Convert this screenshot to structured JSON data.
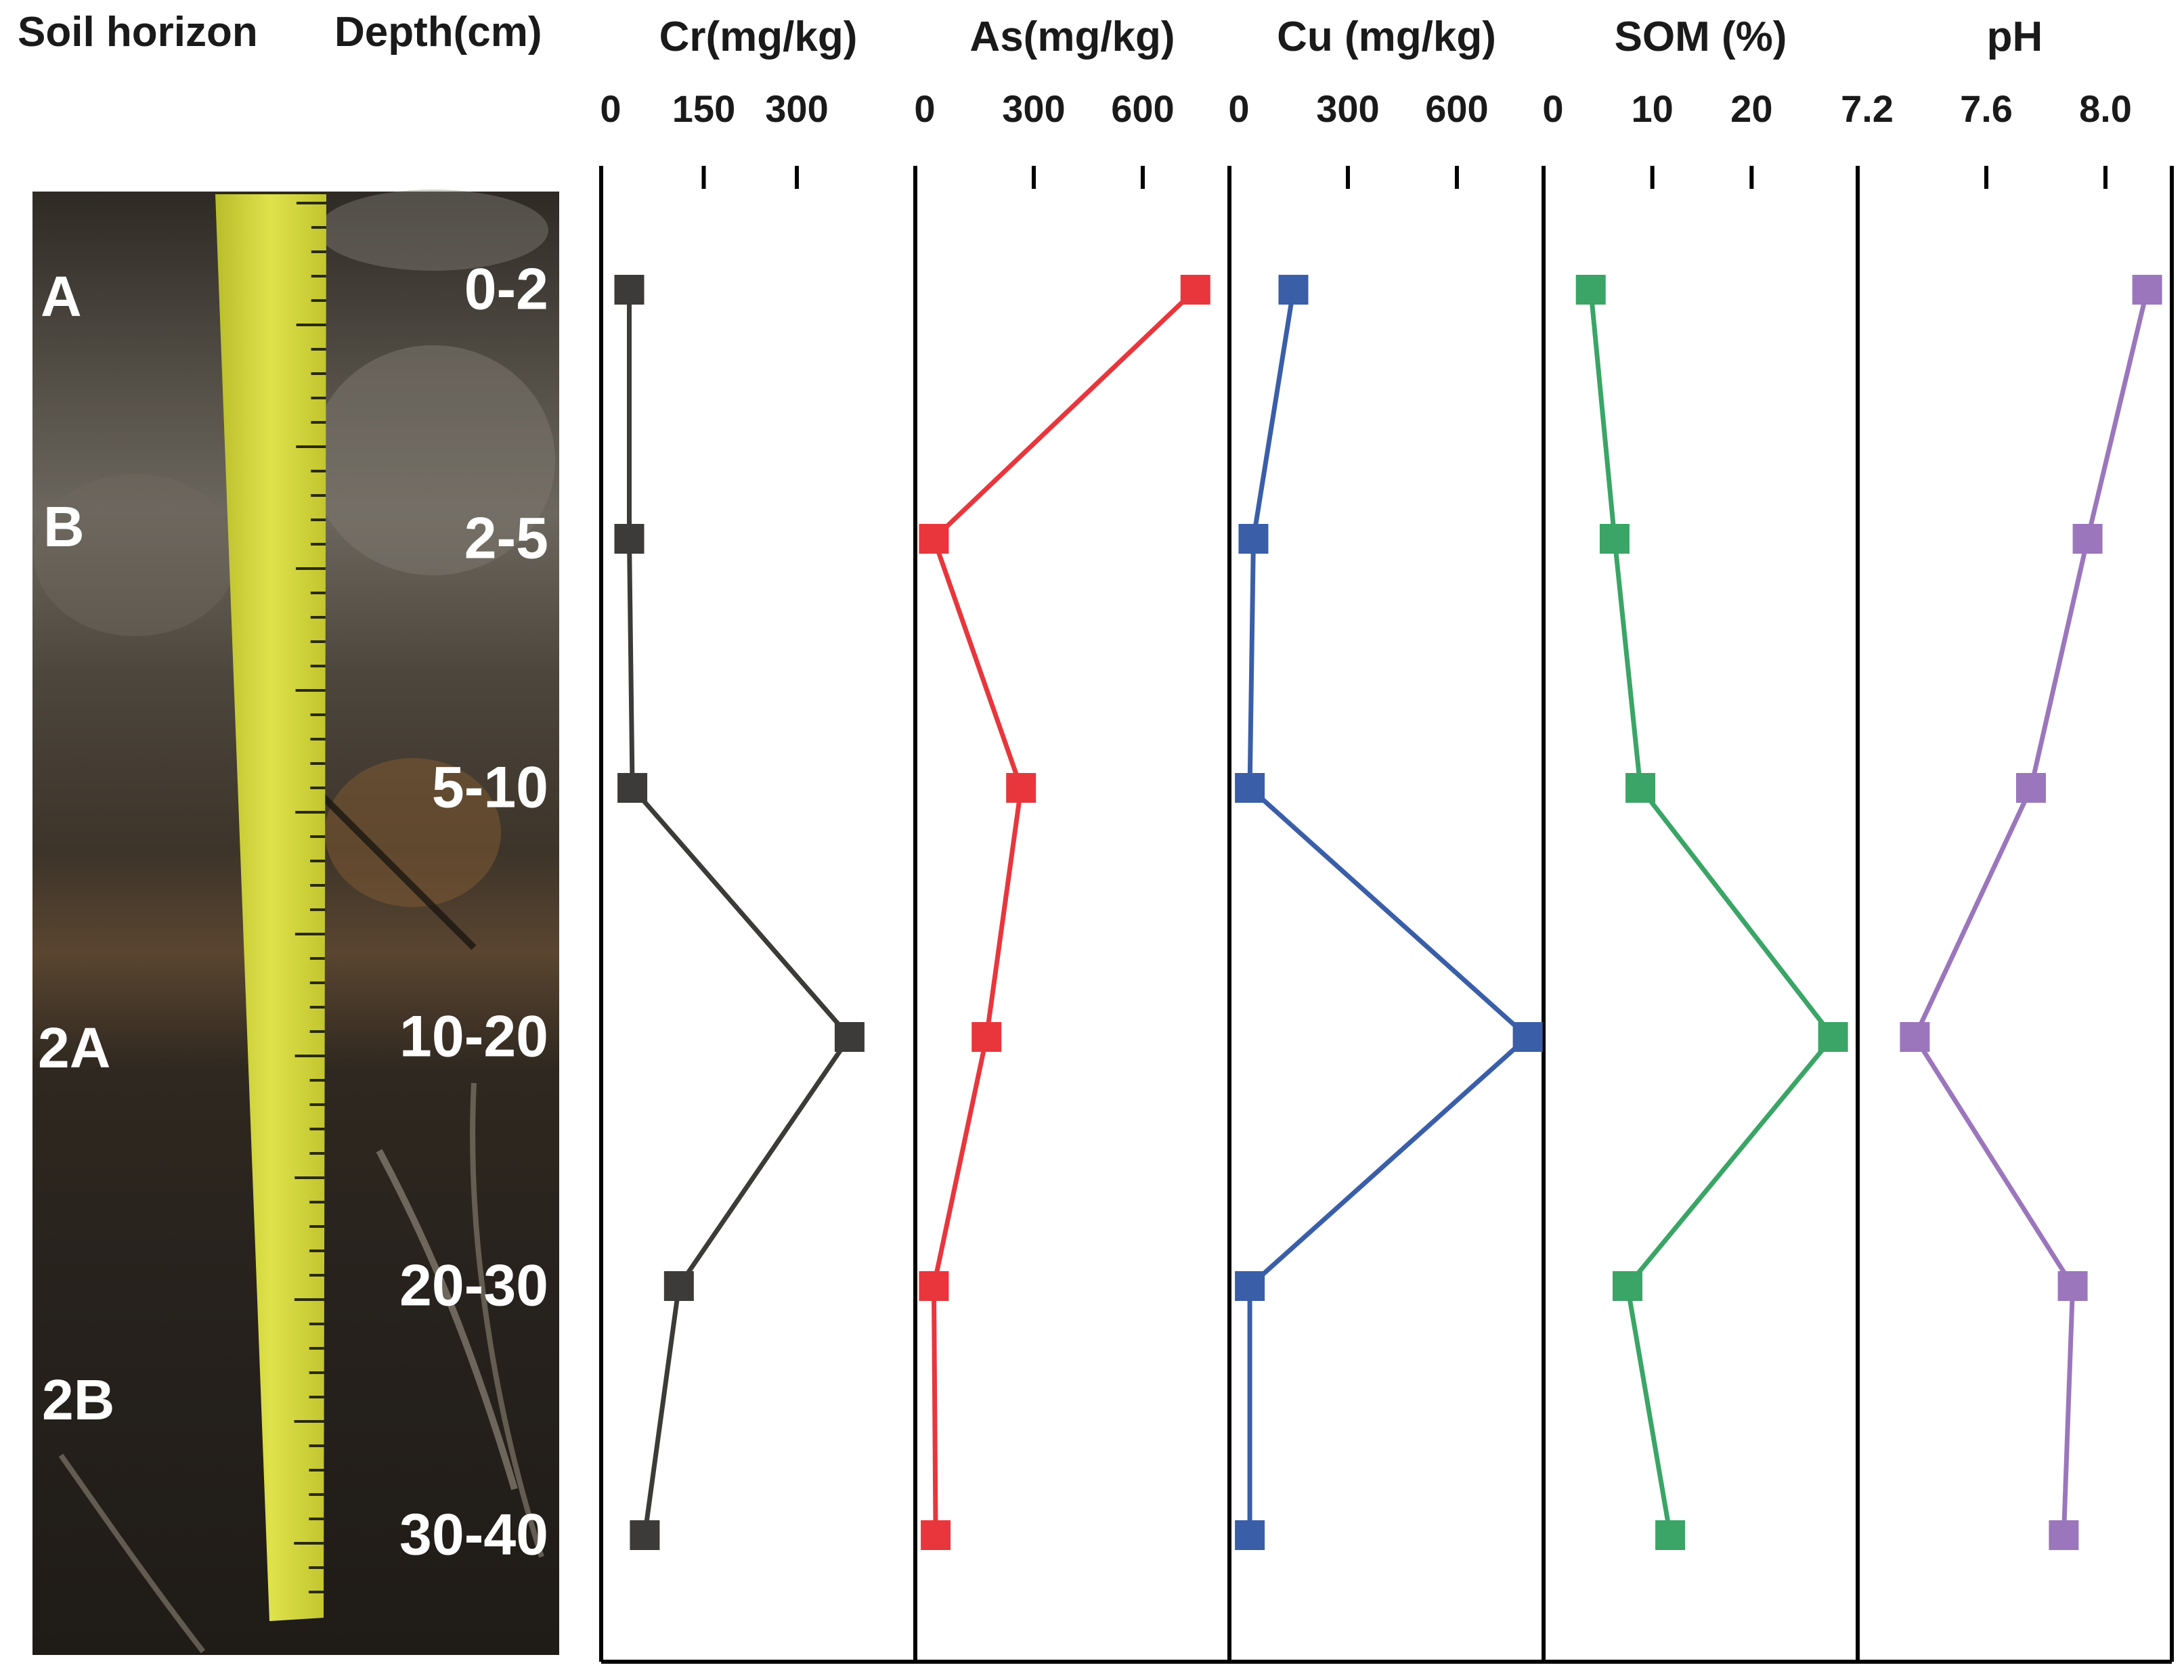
{
  "headers": {
    "soil_horizon": "Soil horizon",
    "depth": "Depth(cm)"
  },
  "colors": {
    "Cr": "#3d3b39",
    "As": "#e8363c",
    "Cu": "#3a5ea8",
    "SOM": "#3aa566",
    "pH": "#9b76bc"
  },
  "chart_data": {
    "type": "line",
    "orientation": "depth-profile",
    "y_categories": [
      "0-2",
      "2-5",
      "5-10",
      "10-20",
      "20-30",
      "30-40"
    ],
    "horizon_labels": [
      "A",
      "B",
      "2A",
      "2B"
    ],
    "panels": [
      {
        "key": "Cr",
        "title": "Cr(mg/kg)",
        "xlim": [
          0,
          480
        ],
        "ticks": [
          0,
          150,
          300
        ],
        "tick_labels": [
          "0",
          "150",
          "300"
        ],
        "values": [
          30,
          30,
          35,
          385,
          110,
          55
        ]
      },
      {
        "key": "As",
        "title": "As(mg/kg)",
        "xlim": [
          0,
          820
        ],
        "ticks": [
          0,
          300,
          600
        ],
        "tick_labels": [
          "0",
          "300",
          "600"
        ],
        "values": [
          745,
          25,
          265,
          170,
          25,
          30
        ]
      },
      {
        "key": "Cu",
        "title": "Cu (mg/kg)",
        "xlim": [
          0,
          820
        ],
        "ticks": [
          0,
          300,
          600
        ],
        "tick_labels": [
          "0",
          "300",
          "600"
        ],
        "values": [
          150,
          40,
          30,
          795,
          30,
          30
        ]
      },
      {
        "key": "SOM",
        "title": "SOM (%)",
        "xlim": [
          0,
          30
        ],
        "ticks": [
          0,
          10,
          20
        ],
        "tick_labels": [
          "0",
          "10",
          "20"
        ],
        "values": [
          3.8,
          6.2,
          8.8,
          28.2,
          7.5,
          11.8
        ]
      },
      {
        "key": "pH",
        "title": "pH",
        "xlim": [
          7.2,
          8.2
        ],
        "ticks": [
          7.2,
          7.6,
          8.0
        ],
        "tick_labels": [
          "7.2",
          "7.6",
          "8.0"
        ],
        "values": [
          8.14,
          7.94,
          7.75,
          7.36,
          7.89,
          7.86
        ]
      }
    ]
  }
}
